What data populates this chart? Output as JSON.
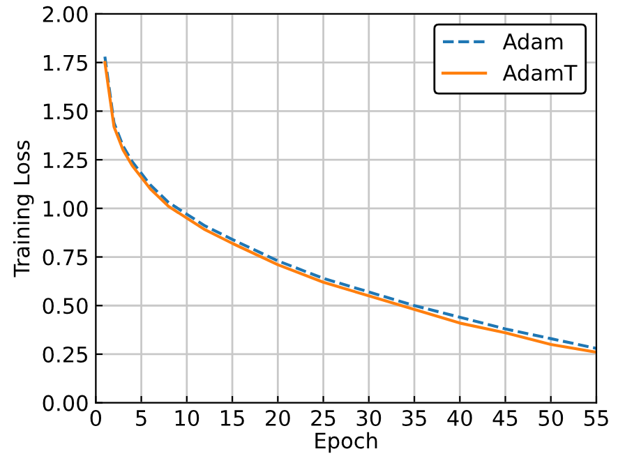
{
  "chart_data": {
    "type": "line",
    "xlabel": "Epoch",
    "ylabel": "Training Loss",
    "x": [
      1,
      2,
      3,
      4,
      5,
      6,
      8,
      10,
      12,
      15,
      20,
      25,
      30,
      35,
      40,
      45,
      50,
      55
    ],
    "series": [
      {
        "name": "Adam",
        "color": "#1f77b4",
        "line_style": "dashed",
        "values": [
          1.78,
          1.44,
          1.32,
          1.24,
          1.18,
          1.12,
          1.03,
          0.97,
          0.91,
          0.84,
          0.73,
          0.64,
          0.57,
          0.5,
          0.44,
          0.38,
          0.33,
          0.28
        ]
      },
      {
        "name": "AdamT",
        "color": "#ff7f0e",
        "line_style": "solid",
        "values": [
          1.75,
          1.42,
          1.3,
          1.22,
          1.16,
          1.1,
          1.01,
          0.95,
          0.89,
          0.82,
          0.71,
          0.62,
          0.55,
          0.48,
          0.41,
          0.36,
          0.3,
          0.26
        ]
      }
    ],
    "xlim": [
      0,
      55
    ],
    "xticks": [
      0,
      5,
      10,
      15,
      20,
      25,
      30,
      35,
      40,
      45,
      50,
      55
    ],
    "ylim": [
      0,
      2
    ],
    "yticks": [
      {
        "value": 0,
        "label": "0.00"
      },
      {
        "value": 0.25,
        "label": "0.25"
      },
      {
        "value": 0.5,
        "label": "0.50"
      },
      {
        "value": 0.75,
        "label": "0.75"
      },
      {
        "value": 1,
        "label": "1.00"
      },
      {
        "value": 1.25,
        "label": "1.25"
      },
      {
        "value": 1.5,
        "label": "1.50"
      },
      {
        "value": 1.75,
        "label": "1.75"
      },
      {
        "value": 2,
        "label": "2.00"
      }
    ],
    "grid": true,
    "legend": "top right"
  }
}
